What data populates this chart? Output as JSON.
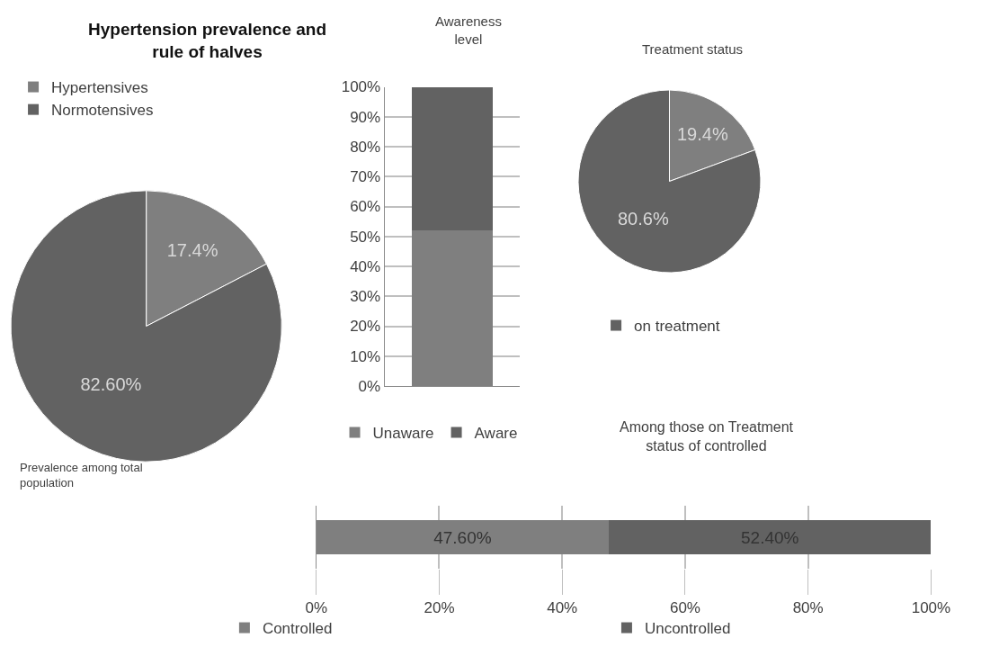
{
  "chart_data": [
    {
      "type": "pie",
      "title": "Hypertension prevalence and rule of halves",
      "categories": [
        "Hypertensives",
        "Normotensives"
      ],
      "values": [
        17.4,
        82.6
      ],
      "colors": [
        "#7f7f7f",
        "#626262"
      ],
      "value_labels": [
        "17.4%",
        "82.60%"
      ],
      "legend": "top left",
      "annotations": [
        "Prevalence among total population"
      ]
    },
    {
      "type": "bar",
      "title": "Awareness level",
      "categories": [
        null
      ],
      "stacked": true,
      "series": [
        {
          "name": "Unaware",
          "color": "#7f7f7f",
          "values": [
            52
          ]
        },
        {
          "name": "Aware",
          "color": "#626262",
          "values": [
            48
          ]
        }
      ],
      "ylim": [
        0,
        100
      ],
      "yticks": [
        {
          "value": 0,
          "label": "0%"
        },
        {
          "value": 10,
          "label": "10%"
        },
        {
          "value": 20,
          "label": "20%"
        },
        {
          "value": 30,
          "label": "30%"
        },
        {
          "value": 40,
          "label": "40%"
        },
        {
          "value": 50,
          "label": "50%"
        },
        {
          "value": 60,
          "label": "60%"
        },
        {
          "value": 70,
          "label": "70%"
        },
        {
          "value": 80,
          "label": "80%"
        },
        {
          "value": 90,
          "label": "90%"
        },
        {
          "value": 100,
          "label": "100%"
        }
      ],
      "grid": "y",
      "legend": "bottom"
    },
    {
      "type": "pie",
      "title": "Treatment status",
      "categories": [
        null,
        "on treatment"
      ],
      "values": [
        19.4,
        80.6
      ],
      "colors": [
        "#7f7f7f",
        "#626262"
      ],
      "value_labels": [
        "19.4%",
        "80.6%"
      ],
      "legend": "bottom"
    },
    {
      "type": "bar",
      "title": "Among those on Treatment status of controlled",
      "orientation": "horizontal",
      "stacked": true,
      "categories": [
        null
      ],
      "series": [
        {
          "name": "Controlled",
          "color": "#7f7f7f",
          "values": [
            47.6
          ],
          "value_labels": [
            "47.60%"
          ]
        },
        {
          "name": "Uncontrolled",
          "color": "#626262",
          "values": [
            52.4
          ],
          "value_labels": [
            "52.40%"
          ]
        }
      ],
      "xlim": [
        0,
        100
      ],
      "xticks": [
        {
          "value": 0,
          "label": "0%"
        },
        {
          "value": 20,
          "label": "20%"
        },
        {
          "value": 40,
          "label": "40%"
        },
        {
          "value": 60,
          "label": "60%"
        },
        {
          "value": 80,
          "label": "80%"
        },
        {
          "value": 100,
          "label": "100%"
        }
      ],
      "grid": "x",
      "legend": "bottom"
    }
  ]
}
